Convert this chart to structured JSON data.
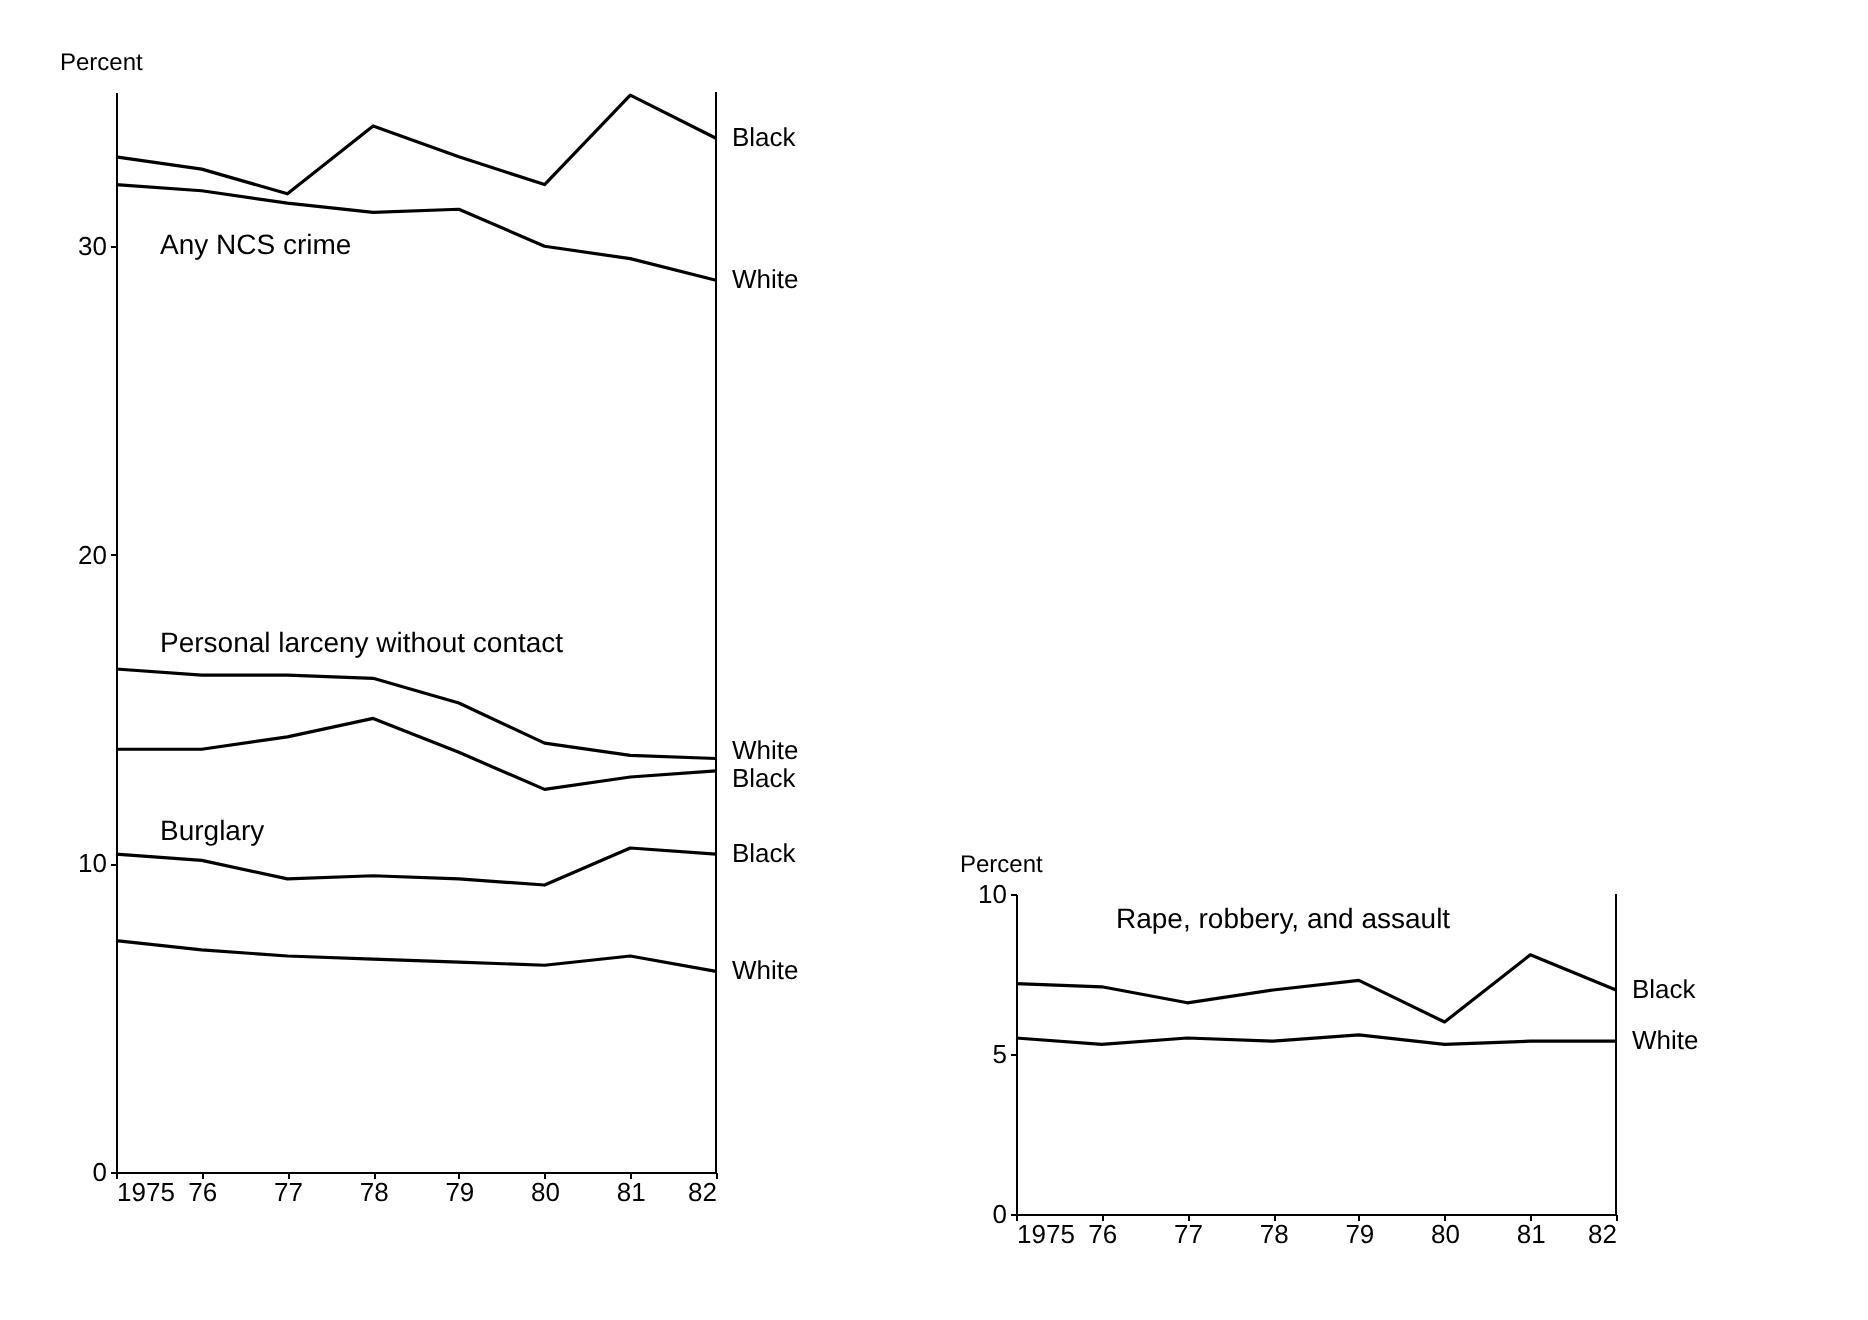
{
  "chart_data": [
    {
      "type": "line",
      "ylabel": "Percent",
      "x": [
        1975,
        1976,
        1977,
        1978,
        1979,
        1980,
        1981,
        1982
      ],
      "xlim": [
        1975,
        1982
      ],
      "xticks": [
        {
          "value": 1975,
          "label": "1975"
        },
        {
          "value": 1976,
          "label": "76"
        },
        {
          "value": 1977,
          "label": "77"
        },
        {
          "value": 1978,
          "label": "78"
        },
        {
          "value": 1979,
          "label": "79"
        },
        {
          "value": 1980,
          "label": "80"
        },
        {
          "value": 1981,
          "label": "81"
        },
        {
          "value": 1982,
          "label": "82"
        }
      ],
      "ylim": [
        0,
        35
      ],
      "yticks": [
        0,
        10,
        20,
        30
      ],
      "grid": false,
      "legend": false,
      "series": [
        {
          "name": "Black",
          "color": "#000000",
          "values": [
            32.9,
            32.5,
            31.7,
            33.9,
            32.9,
            32.0,
            34.9,
            33.5
          ]
        },
        {
          "name": "White",
          "color": "#000000",
          "values": [
            32.0,
            31.8,
            31.4,
            31.1,
            31.2,
            30.0,
            29.6,
            28.9
          ]
        },
        {
          "name": "White",
          "color": "#000000",
          "values": [
            16.3,
            16.1,
            16.1,
            16.0,
            15.2,
            13.9,
            13.5,
            13.4
          ]
        },
        {
          "name": "Black",
          "color": "#000000",
          "values": [
            13.7,
            13.7,
            14.1,
            14.7,
            13.6,
            12.4,
            12.8,
            13.0
          ]
        },
        {
          "name": "Black",
          "color": "#000000",
          "values": [
            10.3,
            10.1,
            9.5,
            9.6,
            9.5,
            9.3,
            10.5,
            10.3
          ]
        },
        {
          "name": "White",
          "color": "#000000",
          "values": [
            7.5,
            7.2,
            7.0,
            6.9,
            6.8,
            6.7,
            7.0,
            6.5
          ]
        }
      ],
      "annotations": [
        "Any NCS crime",
        "Personal larceny without contact",
        "Burglary"
      ]
    },
    {
      "type": "line",
      "ylabel": "Percent",
      "x": [
        1975,
        1976,
        1977,
        1978,
        1979,
        1980,
        1981,
        1982
      ],
      "xlim": [
        1975,
        1982
      ],
      "xticks": [
        {
          "value": 1975,
          "label": "1975"
        },
        {
          "value": 1976,
          "label": "76"
        },
        {
          "value": 1977,
          "label": "77"
        },
        {
          "value": 1978,
          "label": "78"
        },
        {
          "value": 1979,
          "label": "79"
        },
        {
          "value": 1980,
          "label": "80"
        },
        {
          "value": 1981,
          "label": "81"
        },
        {
          "value": 1982,
          "label": "82"
        }
      ],
      "ylim": [
        0,
        10
      ],
      "yticks": [
        0,
        5,
        10
      ],
      "grid": false,
      "legend": false,
      "series": [
        {
          "name": "Black",
          "color": "#000000",
          "values": [
            7.2,
            7.1,
            6.6,
            7.0,
            7.3,
            6.0,
            8.1,
            7.0
          ]
        },
        {
          "name": "White",
          "color": "#000000",
          "values": [
            5.5,
            5.3,
            5.5,
            5.4,
            5.6,
            5.3,
            5.4,
            5.4
          ]
        }
      ],
      "annotations": [
        "Rape, robbery, and assault"
      ]
    }
  ]
}
